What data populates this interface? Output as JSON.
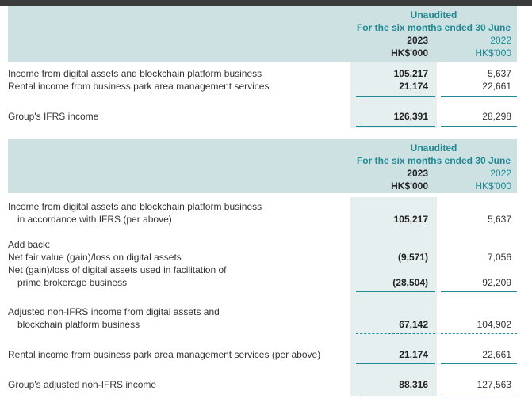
{
  "table1": {
    "header": {
      "unaudited": "Unaudited",
      "period": "For the six months ended 30 June",
      "year_current": "2023",
      "year_prior": "2022",
      "unit_current": "HK$'000",
      "unit_prior": "HK$'000"
    },
    "rows": [
      {
        "label": "Income from digital assets and blockchain platform business",
        "v2023": "105,217",
        "v2022": "5,637"
      },
      {
        "label": "Rental income from business park area management services",
        "v2023": "21,174",
        "v2022": "22,661"
      },
      {
        "label": "Group's IFRS income",
        "v2023": "126,391",
        "v2022": "28,298"
      }
    ]
  },
  "table2": {
    "header": {
      "unaudited": "Unaudited",
      "period": "For the six months ended 30 June",
      "year_current": "2023",
      "year_prior": "2022",
      "unit_current": "HK$'000",
      "unit_prior": "HK$'000"
    },
    "row1": {
      "label1": "Income from digital assets and blockchain platform business",
      "label2": "in accordance with IFRS (per above)",
      "v2023": "105,217",
      "v2022": "5,637"
    },
    "add_back": "Add back:",
    "row2": {
      "label": "Net fair value (gain)/loss on digital assets",
      "v2023": "(9,571)",
      "v2022": "7,056"
    },
    "row3": {
      "label1": "Net (gain)/loss of digital assets used in facilitation of",
      "label2": "prime brokerage business",
      "v2023": "(28,504)",
      "v2022": "92,209"
    },
    "row4": {
      "label1": "Adjusted non-IFRS income from digital assets and",
      "label2": "blockchain platform business",
      "v2023": "67,142",
      "v2022": "104,902"
    },
    "row5": {
      "label": "Rental income from business park area management services (per above)",
      "v2023": "21,174",
      "v2022": "22,661"
    },
    "row6": {
      "label": "Group's adjusted non-IFRS income",
      "v2023": "88,316",
      "v2022": "127,563"
    }
  },
  "colors": {
    "band": "#cde0e2",
    "highlight": "#e6eff0",
    "accent": "#1f8a93"
  }
}
